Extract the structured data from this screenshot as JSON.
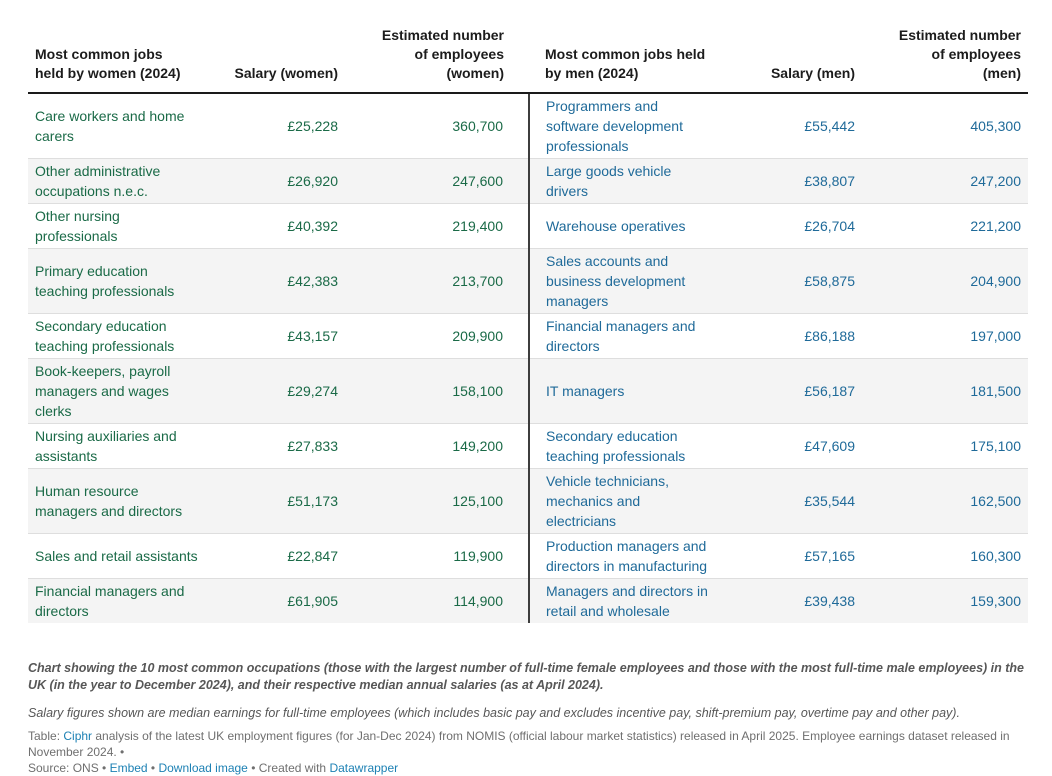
{
  "colors": {
    "women_text": "#1a6a47",
    "men_text": "#1f6a99",
    "header_text": "#1c1c1c",
    "stripe": "#f4f4f4",
    "divider": "#3d3d3d",
    "link_blue": "#1d81b4",
    "footer_gray": "#575757"
  },
  "table": {
    "headers": {
      "w_job": "Most common jobs\nheld by women (2024)",
      "w_salary": "Salary (women)",
      "w_emp": "Estimated number\nof employees\n(women)",
      "m_job": "Most common jobs held\nby men (2024)",
      "m_salary": "Salary (men)",
      "m_emp": "Estimated number\nof employees\n(men)"
    },
    "rows": [
      {
        "w_job": "Care workers and home carers",
        "w_salary": "£25,228",
        "w_emp": "360,700",
        "m_job": "Programmers and software development professionals",
        "m_salary": "£55,442",
        "m_emp": "405,300"
      },
      {
        "w_job": "Other administrative occupations n.e.c.",
        "w_salary": "£26,920",
        "w_emp": "247,600",
        "m_job": "Large goods vehicle drivers",
        "m_salary": "£38,807",
        "m_emp": "247,200"
      },
      {
        "w_job": "Other nursing professionals",
        "w_salary": "£40,392",
        "w_emp": "219,400",
        "m_job": "Warehouse operatives",
        "m_salary": "£26,704",
        "m_emp": "221,200"
      },
      {
        "w_job": "Primary education teaching professionals",
        "w_salary": "£42,383",
        "w_emp": "213,700",
        "m_job": "Sales accounts and business development managers",
        "m_salary": "£58,875",
        "m_emp": "204,900"
      },
      {
        "w_job": "Secondary education teaching professionals",
        "w_salary": "£43,157",
        "w_emp": "209,900",
        "m_job": "Financial managers and directors",
        "m_salary": "£86,188",
        "m_emp": "197,000"
      },
      {
        "w_job": "Book-keepers, payroll managers and wages clerks",
        "w_salary": "£29,274",
        "w_emp": "158,100",
        "m_job": "IT managers",
        "m_salary": "£56,187",
        "m_emp": "181,500"
      },
      {
        "w_job": "Nursing auxiliaries and assistants",
        "w_salary": "£27,833",
        "w_emp": "149,200",
        "m_job": "Secondary education teaching professionals",
        "m_salary": "£47,609",
        "m_emp": "175,100"
      },
      {
        "w_job": "Human resource managers and directors",
        "w_salary": "£51,173",
        "w_emp": "125,100",
        "m_job": "Vehicle technicians, mechanics and electricians",
        "m_salary": "£35,544",
        "m_emp": "162,500"
      },
      {
        "w_job": "Sales and retail assistants",
        "w_salary": "£22,847",
        "w_emp": "119,900",
        "m_job": "Production managers and directors in manufacturing",
        "m_salary": "£57,165",
        "m_emp": "160,300"
      },
      {
        "w_job": "Financial managers and directors",
        "w_salary": "£61,905",
        "w_emp": "114,900",
        "m_job": "Managers and directors in retail and wholesale",
        "m_salary": "£39,438",
        "m_emp": "159,300"
      }
    ]
  },
  "footer": {
    "description": "Chart showing the 10 most common occupations (those with the largest number of full-time female employees and those with the most full-time male employees) in the UK (in the year to December 2024), and their respective median annual salaries (as at April 2024).",
    "note": "Salary figures shown are median earnings for full-time employees (which includes basic pay and excludes incentive pay, shift-premium pay, overtime pay and other pay).",
    "attribution": {
      "prefix": "Table: ",
      "ciphr_link": "Ciphr",
      "body": " analysis of the latest UK employment figures (for Jan-Dec 2024) from NOMIS (official labour market statistics) released in April 2025. Employee earnings dataset released in November 2024. •\nSource: ONS • ",
      "embed_link": "Embed",
      "sep1": " • ",
      "download_link": "Download image",
      "created_with": " • Created with ",
      "datawrapper_link": "Datawrapper"
    }
  },
  "chart_data": {
    "type": "table",
    "columns": [
      "Most common jobs held by women (2024)",
      "Salary (women)",
      "Estimated number of employees (women)",
      "Most common jobs held by men (2024)",
      "Salary (men)",
      "Estimated number of employees (men)"
    ],
    "rows": [
      [
        "Care workers and home carers",
        "£25,228",
        "360,700",
        "Programmers and software development professionals",
        "£55,442",
        "405,300"
      ],
      [
        "Other administrative occupations n.e.c.",
        "£26,920",
        "247,600",
        "Large goods vehicle drivers",
        "£38,807",
        "247,200"
      ],
      [
        "Other nursing professionals",
        "£40,392",
        "219,400",
        "Warehouse operatives",
        "£26,704",
        "221,200"
      ],
      [
        "Primary education teaching professionals",
        "£42,383",
        "213,700",
        "Sales accounts and business development managers",
        "£58,875",
        "204,900"
      ],
      [
        "Secondary education teaching professionals",
        "£43,157",
        "209,900",
        "Financial managers and directors",
        "£86,188",
        "197,000"
      ],
      [
        "Book-keepers, payroll managers and wages clerks",
        "£29,274",
        "158,100",
        "IT managers",
        "£56,187",
        "181,500"
      ],
      [
        "Nursing auxiliaries and assistants",
        "£27,833",
        "149,200",
        "Secondary education teaching professionals",
        "£47,609",
        "175,100"
      ],
      [
        "Human resource managers and directors",
        "£51,173",
        "125,100",
        "Vehicle technicians, mechanics and electricians",
        "£35,544",
        "162,500"
      ],
      [
        "Sales and retail assistants",
        "£22,847",
        "119,900",
        "Production managers and directors in manufacturing",
        "£57,165",
        "160,300"
      ],
      [
        "Financial managers and directors",
        "£61,905",
        "114,900",
        "Managers and directors in retail and wholesale",
        "£39,438",
        "159,300"
      ]
    ],
    "salary_values_women": [
      25228,
      26920,
      40392,
      42383,
      43157,
      29274,
      27833,
      51173,
      22847,
      61905
    ],
    "employees_women": [
      360700,
      247600,
      219400,
      213700,
      209900,
      158100,
      149200,
      125100,
      119900,
      114900
    ],
    "salary_values_men": [
      55442,
      38807,
      26704,
      58875,
      86188,
      56187,
      47609,
      35544,
      57165,
      39438
    ],
    "employees_men": [
      405300,
      247200,
      221200,
      204900,
      197000,
      181500,
      175100,
      162500,
      160300,
      159300
    ]
  }
}
